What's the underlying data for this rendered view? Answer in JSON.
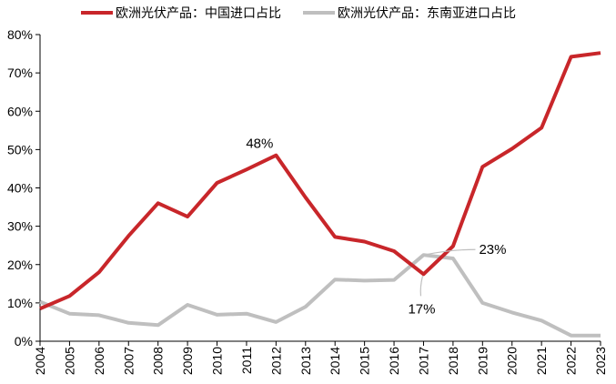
{
  "chart_data": {
    "type": "line",
    "title": "",
    "xlabel": "",
    "ylabel": "",
    "x": [
      "2004",
      "2005",
      "2006",
      "2007",
      "2008",
      "2009",
      "2010",
      "2011",
      "2012",
      "2013",
      "2014",
      "2015",
      "2016",
      "2017",
      "2018",
      "2019",
      "2020",
      "2021",
      "2022",
      "2023"
    ],
    "ylim": [
      0,
      80
    ],
    "yticks": [
      0,
      10,
      20,
      30,
      40,
      50,
      60,
      70,
      80
    ],
    "ytick_labels": [
      "0%",
      "10%",
      "20%",
      "30%",
      "40%",
      "50%",
      "60%",
      "70%",
      "80%"
    ],
    "grid": false,
    "legend_position": "top",
    "series": [
      {
        "name": "欧洲光伏产品：中国进口占比",
        "color": "#c8262a",
        "values": [
          8.5,
          11.8,
          18,
          27.5,
          36,
          32.5,
          41.3,
          44.8,
          48.5,
          37.5,
          27.2,
          26,
          23.5,
          17.5,
          24.8,
          45.5,
          50.2,
          55.7,
          74.2,
          75.2
        ]
      },
      {
        "name": "欧洲光伏产品：东南亚进口占比",
        "color": "#bfbfbf",
        "values": [
          10.3,
          7.2,
          6.8,
          4.8,
          4.2,
          9.5,
          6.9,
          7.2,
          5,
          9,
          16.1,
          15.8,
          16,
          22.5,
          21.6,
          10,
          7.5,
          5.4,
          1.5,
          1.5
        ]
      }
    ],
    "annotations": [
      {
        "text": "48%",
        "series": 0,
        "x": "2012"
      },
      {
        "text": "23%",
        "series": 1,
        "x": "2017"
      },
      {
        "text": "17%",
        "series": 0,
        "x": "2017"
      }
    ]
  }
}
